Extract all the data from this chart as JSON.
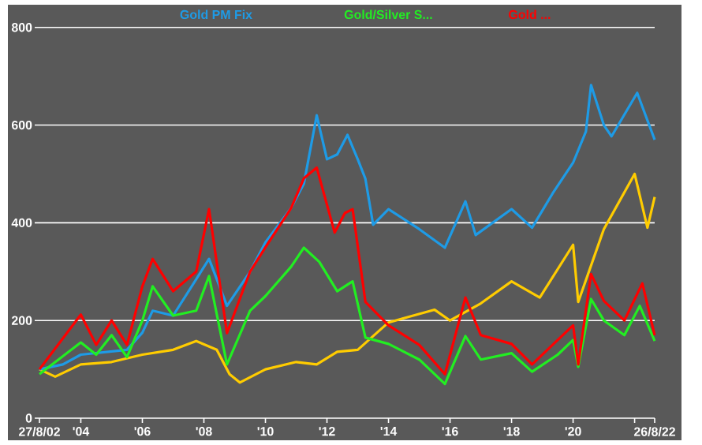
{
  "chart_data": {
    "type": "line",
    "xlim": [
      "2002-08-27",
      "2022-08-26"
    ],
    "xticks": [
      {
        "value": "2002-08-27",
        "label": "27/8/02"
      },
      {
        "value": "2004-01-01",
        "label": "'04"
      },
      {
        "value": "2006-01-01",
        "label": "'06"
      },
      {
        "value": "2008-01-01",
        "label": "'08"
      },
      {
        "value": "2010-01-01",
        "label": "'10"
      },
      {
        "value": "2012-01-01",
        "label": "'12"
      },
      {
        "value": "2014-01-01",
        "label": "'14"
      },
      {
        "value": "2016-01-01",
        "label": "'16"
      },
      {
        "value": "2018-01-01",
        "label": "'18"
      },
      {
        "value": "2020-01-01",
        "label": "'20"
      },
      {
        "value": "2022-01-01",
        "label": null
      },
      {
        "value": "2022-08-26",
        "label": "26/8/22"
      }
    ],
    "ylim": [
      0,
      840
    ],
    "yticks": [
      0,
      200,
      400,
      600,
      800
    ],
    "grid": "y",
    "series": [
      {
        "color": "#ffcc00",
        "x": [
          "2002-08-27",
          "2003-03",
          "2004-01",
          "2005-01",
          "2006-01",
          "2007-01",
          "2007-10",
          "2008-06",
          "2008-11",
          "2009-03",
          "2010-01",
          "2011-01",
          "2011-09",
          "2012-05",
          "2013-01",
          "2014-01",
          "2015-07",
          "2016-01",
          "2017-01",
          "2018-01",
          "2018-12",
          "2020-01",
          "2020-03",
          "2021-01",
          "2022-01",
          "2022-06",
          "2022-08-26"
        ],
        "values": [
          100,
          85,
          110,
          115,
          130,
          140,
          158,
          140,
          90,
          73,
          100,
          115,
          110,
          136,
          140,
          196,
          222,
          200,
          235,
          280,
          247,
          355,
          238,
          387,
          500,
          390,
          453
        ]
      },
      {
        "name": "Gold PM Fix",
        "color": "#1e9be6",
        "x": [
          "2002-08-27",
          "2003-06",
          "2004-01",
          "2005-07",
          "2006-01",
          "2006-05",
          "2007-01",
          "2008-03",
          "2008-10",
          "2009-07",
          "2010-01",
          "2010-11",
          "2011-04",
          "2011-09",
          "2012-01",
          "2012-05",
          "2012-09",
          "2013-01",
          "2013-04",
          "2013-07",
          "2014-01",
          "2015-01",
          "2015-11",
          "2016-07",
          "2016-11",
          "2018-01",
          "2018-09",
          "2019-05",
          "2020-01",
          "2020-06",
          "2020-08",
          "2021-01",
          "2021-04",
          "2022-02",
          "2022-08-26"
        ],
        "values": [
          100,
          110,
          130,
          140,
          175,
          220,
          210,
          326,
          230,
          300,
          360,
          430,
          480,
          620,
          530,
          540,
          580,
          530,
          490,
          396,
          428,
          387,
          349,
          444,
          375,
          428,
          390,
          460,
          523,
          587,
          682,
          600,
          577,
          666,
          570
        ]
      },
      {
        "name": "Gold/Silver S...",
        "color": "#22ee22",
        "x": [
          "2002-08-27",
          "2004-01",
          "2004-07",
          "2005-01",
          "2005-07",
          "2006-01",
          "2006-05",
          "2007-01",
          "2007-10",
          "2008-03",
          "2008-10",
          "2009-07",
          "2010-01",
          "2010-11",
          "2011-04",
          "2011-10",
          "2012-05",
          "2012-11",
          "2013-04",
          "2014-01",
          "2015-01",
          "2015-11",
          "2016-07",
          "2017-01",
          "2018-01",
          "2018-09",
          "2019-07",
          "2020-01",
          "2020-03",
          "2020-08",
          "2021-01",
          "2021-09",
          "2022-03",
          "2022-08-26"
        ],
        "values": [
          90,
          155,
          130,
          170,
          125,
          200,
          270,
          210,
          220,
          291,
          110,
          220,
          250,
          310,
          349,
          320,
          260,
          280,
          165,
          152,
          120,
          70,
          168,
          120,
          133,
          95,
          130,
          160,
          105,
          244,
          200,
          170,
          230,
          158
        ]
      },
      {
        "name": "Gold ...",
        "color": "#ff0000",
        "x": [
          "2002-08-27",
          "2004-01",
          "2004-07",
          "2005-01",
          "2005-07",
          "2006-01",
          "2006-05",
          "2007-01",
          "2007-10",
          "2008-03",
          "2008-10",
          "2009-07",
          "2010-01",
          "2010-11",
          "2011-04",
          "2011-09",
          "2012-04",
          "2012-08",
          "2012-11",
          "2013-04",
          "2014-01",
          "2015-01",
          "2015-11",
          "2016-07",
          "2017-01",
          "2018-01",
          "2018-09",
          "2019-07",
          "2020-01",
          "2020-03",
          "2020-08",
          "2021-01",
          "2021-09",
          "2022-04",
          "2022-08-26"
        ],
        "values": [
          100,
          212,
          150,
          200,
          150,
          270,
          326,
          260,
          300,
          428,
          174,
          300,
          350,
          430,
          491,
          513,
          380,
          420,
          428,
          238,
          190,
          150,
          90,
          247,
          170,
          152,
          110,
          160,
          190,
          110,
          295,
          240,
          200,
          276,
          170
        ]
      }
    ]
  }
}
